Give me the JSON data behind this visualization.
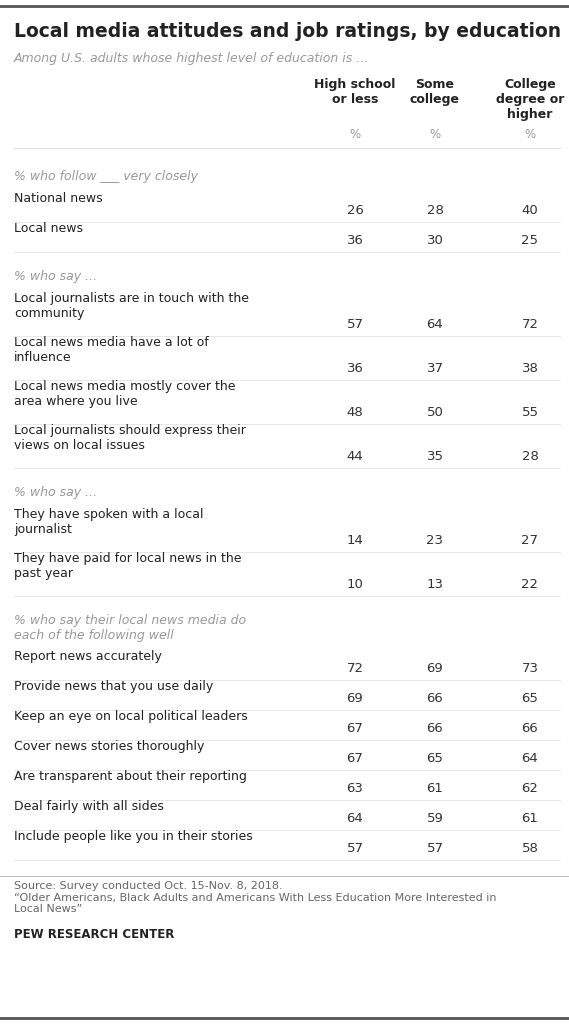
{
  "title": "Local media attitudes and job ratings, by education",
  "subtitle": "Among U.S. adults whose highest level of education is ...",
  "col_headers": [
    "High school\nor less",
    "Some\ncollege",
    "College\ndegree or\nhigher"
  ],
  "sections": [
    {
      "section_label": "% who follow ___ very closely",
      "rows": [
        {
          "label": "National news",
          "values": [
            26,
            28,
            40
          ]
        },
        {
          "label": "Local news",
          "values": [
            36,
            30,
            25
          ]
        }
      ]
    },
    {
      "section_label": "% who say ...",
      "rows": [
        {
          "label": "Local journalists are in touch with the\ncommunity",
          "values": [
            57,
            64,
            72
          ]
        },
        {
          "label": "Local news media have a lot of\ninfluence",
          "values": [
            36,
            37,
            38
          ]
        },
        {
          "label": "Local news media mostly cover the\narea where you live",
          "values": [
            48,
            50,
            55
          ]
        },
        {
          "label": "Local journalists should express their\nviews on local issues",
          "values": [
            44,
            35,
            28
          ]
        }
      ]
    },
    {
      "section_label": "% who say ...",
      "rows": [
        {
          "label": "They have spoken with a local\njournalist",
          "values": [
            14,
            23,
            27
          ]
        },
        {
          "label": "They have paid for local news in the\npast year",
          "values": [
            10,
            13,
            22
          ]
        }
      ]
    },
    {
      "section_label": "% who say their local news media do\neach of the following well",
      "rows": [
        {
          "label": "Report news accurately",
          "values": [
            72,
            69,
            73
          ]
        },
        {
          "label": "Provide news that you use daily",
          "values": [
            69,
            66,
            65
          ]
        },
        {
          "label": "Keep an eye on local political leaders",
          "values": [
            67,
            66,
            66
          ]
        },
        {
          "label": "Cover news stories thoroughly",
          "values": [
            67,
            65,
            64
          ]
        },
        {
          "label": "Are transparent about their reporting",
          "values": [
            63,
            61,
            62
          ]
        },
        {
          "label": "Deal fairly with all sides",
          "values": [
            64,
            59,
            61
          ]
        },
        {
          "label": "Include people like you in their stories",
          "values": [
            57,
            57,
            58
          ]
        }
      ]
    }
  ],
  "footer_source": "Source: Survey conducted Oct. 15-Nov. 8, 2018.\n“Older Americans, Black Adults and Americans With Less Education More Interested in\nLocal News”",
  "footer_brand": "PEW RESEARCH CENTER",
  "bg_color": "#ffffff",
  "text_color": "#222222",
  "section_label_color": "#999999",
  "value_color": "#333333",
  "label_color": "#222222",
  "header_color": "#222222",
  "separator_color": "#dddddd",
  "border_color": "#555555"
}
